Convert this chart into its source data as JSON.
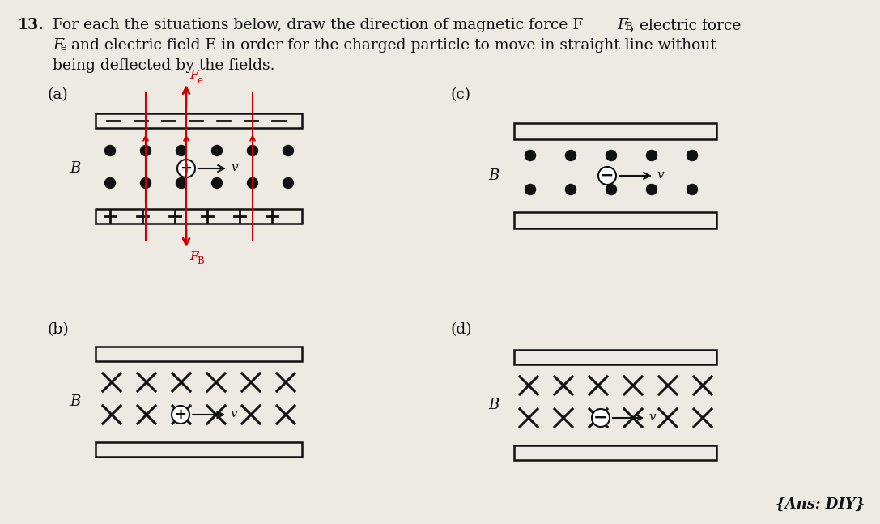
{
  "bg_color": "#ede9e3",
  "text_color": "#111111",
  "red_color": "#cc0000",
  "title_num": "13.",
  "line1": "For each the situations below, draw the direction of magnetic force F",
  "line1_sub": "B",
  "line1_end": ", electric force",
  "line2_start": "F",
  "line2_sub": "e",
  "line2_end": " and electric field E in order for the charged particle to move in straight line without",
  "line3": "being deflected by the fields.",
  "ans": "{Ans: DIY}",
  "a_label": "(a)",
  "b_label": "(b)",
  "c_label": "(c)",
  "d_label": "(d)",
  "B_label": "B",
  "v_label": "v"
}
